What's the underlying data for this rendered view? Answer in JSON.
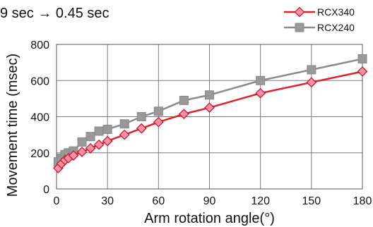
{
  "chart_data": {
    "type": "line",
    "title": "9 sec → 0.45 sec",
    "xlabel": "Arm rotation angle(°)",
    "ylabel": "Movement time (msec)",
    "xlim": [
      0,
      180
    ],
    "ylim": [
      0,
      800
    ],
    "xticks": [
      0,
      30,
      60,
      90,
      120,
      150,
      180
    ],
    "yticks": [
      0,
      200,
      400,
      600,
      800
    ],
    "x_tick_labels": [
      "0",
      "30",
      "60",
      "90",
      "120",
      "150",
      "180"
    ],
    "y_tick_labels": [
      "0",
      "200",
      "400",
      "600",
      "800"
    ],
    "grid": true,
    "legend_position": "top-right",
    "series": [
      {
        "name": "RCX340",
        "color": "#e0202a",
        "marker": "diamond",
        "marker_fill": "#ff8fa3",
        "x": [
          1,
          3,
          5,
          7,
          10,
          15,
          20,
          25,
          30,
          40,
          50,
          60,
          75,
          90,
          120,
          150,
          180
        ],
        "y": [
          115,
          140,
          160,
          170,
          185,
          205,
          225,
          245,
          265,
          300,
          335,
          370,
          415,
          450,
          530,
          590,
          650
        ]
      },
      {
        "name": "RCX240",
        "color": "#8a8a8a",
        "marker": "square",
        "marker_fill": "#999999",
        "x": [
          1,
          3,
          5,
          7,
          10,
          15,
          20,
          25,
          30,
          40,
          50,
          60,
          75,
          90,
          120,
          150,
          180
        ],
        "y": [
          150,
          170,
          190,
          200,
          210,
          260,
          290,
          320,
          330,
          360,
          400,
          430,
          490,
          520,
          600,
          660,
          720
        ]
      }
    ]
  }
}
